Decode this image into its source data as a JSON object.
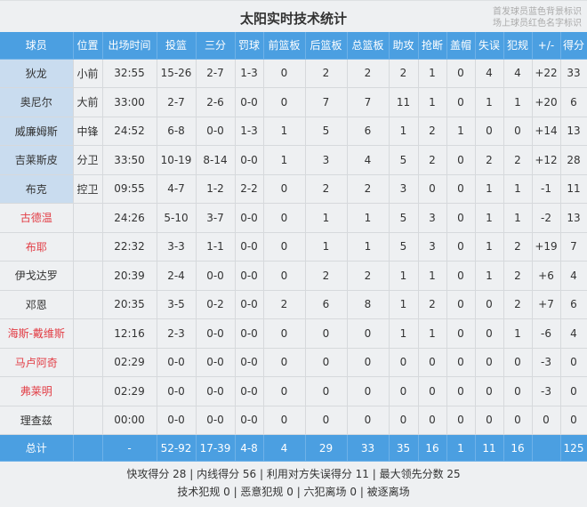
{
  "title": "太阳实时技术统计",
  "legend": [
    "首发球员蓝色背景标识",
    "场上球员红色名字标识"
  ],
  "columns": [
    "球员",
    "位置",
    "出场时间",
    "投篮",
    "三分",
    "罚球",
    "前篮板",
    "后篮板",
    "总篮板",
    "助攻",
    "抢断",
    "盖帽",
    "失误",
    "犯规",
    "+/-",
    "得分"
  ],
  "colors": {
    "header": "#4b9fe1",
    "starter_bg": "#c9dcef",
    "on_court_name": "#e23d45"
  },
  "players": [
    {
      "starter": true,
      "on_court": false,
      "cells": [
        "狄龙",
        "小前",
        "32:55",
        "15-26",
        "2-7",
        "1-3",
        "0",
        "2",
        "2",
        "2",
        "1",
        "0",
        "4",
        "4",
        "+22",
        "33"
      ]
    },
    {
      "starter": true,
      "on_court": false,
      "cells": [
        "奥尼尔",
        "大前",
        "33:00",
        "2-7",
        "2-6",
        "0-0",
        "0",
        "7",
        "7",
        "11",
        "1",
        "0",
        "1",
        "1",
        "+20",
        "6"
      ]
    },
    {
      "starter": true,
      "on_court": false,
      "cells": [
        "威廉姆斯",
        "中锋",
        "24:52",
        "6-8",
        "0-0",
        "1-3",
        "1",
        "5",
        "6",
        "1",
        "2",
        "1",
        "0",
        "0",
        "+14",
        "13"
      ]
    },
    {
      "starter": true,
      "on_court": false,
      "cells": [
        "吉莱斯皮",
        "分卫",
        "33:50",
        "10-19",
        "8-14",
        "0-0",
        "1",
        "3",
        "4",
        "5",
        "2",
        "0",
        "2",
        "2",
        "+12",
        "28"
      ]
    },
    {
      "starter": true,
      "on_court": false,
      "cells": [
        "布克",
        "控卫",
        "09:55",
        "4-7",
        "1-2",
        "2-2",
        "0",
        "2",
        "2",
        "3",
        "0",
        "0",
        "1",
        "1",
        "-1",
        "11"
      ]
    },
    {
      "starter": false,
      "on_court": true,
      "cells": [
        "古德温",
        "",
        "24:26",
        "5-10",
        "3-7",
        "0-0",
        "0",
        "1",
        "1",
        "5",
        "3",
        "0",
        "1",
        "1",
        "-2",
        "13"
      ]
    },
    {
      "starter": false,
      "on_court": true,
      "cells": [
        "布耶",
        "",
        "22:32",
        "3-3",
        "1-1",
        "0-0",
        "0",
        "1",
        "1",
        "5",
        "3",
        "0",
        "1",
        "2",
        "+19",
        "7"
      ]
    },
    {
      "starter": false,
      "on_court": false,
      "cells": [
        "伊戈达罗",
        "",
        "20:39",
        "2-4",
        "0-0",
        "0-0",
        "0",
        "2",
        "2",
        "1",
        "1",
        "0",
        "1",
        "2",
        "+6",
        "4"
      ]
    },
    {
      "starter": false,
      "on_court": false,
      "cells": [
        "邓恩",
        "",
        "20:35",
        "3-5",
        "0-2",
        "0-0",
        "2",
        "6",
        "8",
        "1",
        "2",
        "0",
        "0",
        "2",
        "+7",
        "6"
      ]
    },
    {
      "starter": false,
      "on_court": true,
      "cells": [
        "海斯-戴维斯",
        "",
        "12:16",
        "2-3",
        "0-0",
        "0-0",
        "0",
        "0",
        "0",
        "1",
        "1",
        "0",
        "0",
        "1",
        "-6",
        "4"
      ]
    },
    {
      "starter": false,
      "on_court": true,
      "cells": [
        "马卢阿奇",
        "",
        "02:29",
        "0-0",
        "0-0",
        "0-0",
        "0",
        "0",
        "0",
        "0",
        "0",
        "0",
        "0",
        "0",
        "-3",
        "0"
      ]
    },
    {
      "starter": false,
      "on_court": true,
      "cells": [
        "弗莱明",
        "",
        "02:29",
        "0-0",
        "0-0",
        "0-0",
        "0",
        "0",
        "0",
        "0",
        "0",
        "0",
        "0",
        "0",
        "-3",
        "0"
      ]
    },
    {
      "starter": false,
      "on_court": false,
      "cells": [
        "理查兹",
        "",
        "00:00",
        "0-0",
        "0-0",
        "0-0",
        "0",
        "0",
        "0",
        "0",
        "0",
        "0",
        "0",
        "0",
        "0",
        "0"
      ]
    }
  ],
  "total": [
    "总计",
    "",
    "-",
    "52-92",
    "17-39",
    "4-8",
    "4",
    "29",
    "33",
    "35",
    "16",
    "1",
    "11",
    "16",
    "",
    "125"
  ],
  "footer": [
    "快攻得分 28 | 内线得分 56 | 利用对方失误得分 11 | 最大领先分数 25",
    "技术犯规 0 | 恶意犯规 0 | 六犯离场 0 | 被逐离场"
  ]
}
